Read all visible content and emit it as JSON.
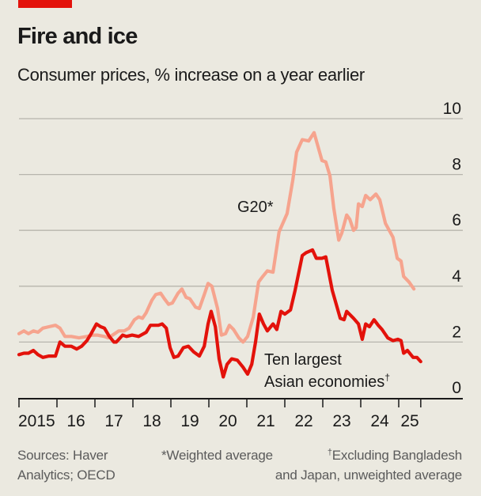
{
  "header": {
    "title": "Fire and ice",
    "subtitle": "Consumer prices, % increase on a year earlier"
  },
  "footer": {
    "sources_line1": "Sources: Haver",
    "sources_line2": "Analytics; OECD",
    "note_weighted": "*Weighted average",
    "note_excluding_mark": "†",
    "note_excluding_line1": "Excluding Bangladesh",
    "note_excluding_line2": "and Japan, unweighted average"
  },
  "colors": {
    "background": "#ebe9e0",
    "accent_red": "#e3120b",
    "g20": "#f6a48e",
    "asian": "#e3120b",
    "grid": "#b7b5ad",
    "axis": "#1a1a1a"
  },
  "chart_data": {
    "type": "line",
    "title": "Fire and ice",
    "subtitle": "Consumer prices, % increase on a year earlier",
    "xlabel": "",
    "ylabel": "",
    "xlim": [
      2015,
      2026.3
    ],
    "ylim": [
      0,
      10
    ],
    "y_ticks": [
      0,
      2,
      4,
      6,
      8,
      10
    ],
    "y_tick_labels": [
      "0",
      "2",
      "4",
      "6",
      "8",
      "10"
    ],
    "y_axis_side": "right",
    "x_ticks": [
      2015,
      2016,
      2017,
      2018,
      2019,
      2020,
      2021,
      2022,
      2023,
      2024,
      2025,
      2025.58
    ],
    "x_tick_labels": [
      "2015",
      "16",
      "17",
      "18",
      "19",
      "20",
      "21",
      "22",
      "23",
      "24",
      "25"
    ],
    "grid": true,
    "series": [
      {
        "name": "G20*",
        "label_lines": [
          "G20*"
        ],
        "x": [
          2015.0,
          2015.13,
          2015.25,
          2015.38,
          2015.5,
          2015.63,
          2015.79,
          2015.96,
          2016.08,
          2016.21,
          2016.38,
          2016.58,
          2016.79,
          2016.94,
          2017.06,
          2017.25,
          2017.35,
          2017.52,
          2017.63,
          2017.77,
          2017.9,
          2018.04,
          2018.15,
          2018.25,
          2018.35,
          2018.5,
          2018.6,
          2018.73,
          2018.83,
          2018.94,
          2019.04,
          2019.19,
          2019.29,
          2019.4,
          2019.5,
          2019.65,
          2019.75,
          2019.88,
          2019.98,
          2020.08,
          2020.23,
          2020.33,
          2020.44,
          2020.54,
          2020.65,
          2020.79,
          2020.9,
          2021.02,
          2021.17,
          2021.31,
          2021.42,
          2021.54,
          2021.69,
          2021.85,
          2022.06,
          2022.21,
          2022.31,
          2022.46,
          2022.63,
          2022.77,
          2022.98,
          2023.08,
          2023.19,
          2023.29,
          2023.42,
          2023.5,
          2023.63,
          2023.71,
          2023.81,
          2023.88,
          2023.94,
          2024.04,
          2024.13,
          2024.25,
          2024.4,
          2024.5,
          2024.65,
          2024.85,
          2024.96,
          2025.06,
          2025.13,
          2025.27,
          2025.4
        ],
        "values": [
          2.3,
          2.4,
          2.3,
          2.4,
          2.35,
          2.5,
          2.55,
          2.6,
          2.5,
          2.2,
          2.2,
          2.15,
          2.2,
          2.25,
          2.25,
          2.2,
          2.15,
          2.3,
          2.4,
          2.4,
          2.5,
          2.8,
          2.9,
          2.85,
          3.05,
          3.5,
          3.7,
          3.75,
          3.55,
          3.35,
          3.4,
          3.75,
          3.9,
          3.6,
          3.55,
          3.25,
          3.2,
          3.7,
          4.1,
          4.0,
          3.2,
          2.25,
          2.3,
          2.6,
          2.45,
          2.15,
          2.0,
          2.2,
          2.9,
          4.15,
          4.35,
          4.55,
          4.5,
          5.95,
          6.6,
          7.8,
          8.8,
          9.25,
          9.2,
          9.5,
          8.5,
          8.45,
          7.95,
          6.8,
          5.65,
          5.9,
          6.55,
          6.4,
          6.0,
          6.1,
          6.95,
          6.85,
          7.25,
          7.1,
          7.3,
          7.1,
          6.25,
          5.75,
          5.0,
          4.9,
          4.35,
          4.15,
          3.9
        ]
      },
      {
        "name": "Ten largest Asian economies†",
        "label_lines": [
          "Ten largest",
          "Asian economies"
        ],
        "label_mark": "†",
        "x": [
          2015.0,
          2015.13,
          2015.25,
          2015.38,
          2015.5,
          2015.63,
          2015.79,
          2015.96,
          2016.08,
          2016.21,
          2016.38,
          2016.52,
          2016.65,
          2016.79,
          2016.9,
          2017.04,
          2017.15,
          2017.25,
          2017.38,
          2017.5,
          2017.56,
          2017.63,
          2017.73,
          2017.83,
          2017.98,
          2018.15,
          2018.35,
          2018.46,
          2018.67,
          2018.77,
          2018.88,
          2018.98,
          2019.08,
          2019.19,
          2019.33,
          2019.46,
          2019.6,
          2019.75,
          2019.88,
          2019.98,
          2020.06,
          2020.17,
          2020.27,
          2020.38,
          2020.48,
          2020.6,
          2020.75,
          2020.9,
          2021.02,
          2021.13,
          2021.23,
          2021.33,
          2021.44,
          2021.54,
          2021.69,
          2021.79,
          2021.9,
          2022.0,
          2022.15,
          2022.27,
          2022.46,
          2022.56,
          2022.73,
          2022.83,
          2022.98,
          2023.08,
          2023.25,
          2023.46,
          2023.56,
          2023.63,
          2023.81,
          2023.94,
          2024.04,
          2024.13,
          2024.23,
          2024.35,
          2024.46,
          2024.56,
          2024.71,
          2024.85,
          2024.98,
          2025.06,
          2025.13,
          2025.23,
          2025.38,
          2025.48,
          2025.58
        ],
        "values": [
          1.55,
          1.6,
          1.6,
          1.7,
          1.55,
          1.45,
          1.5,
          1.5,
          2.0,
          1.85,
          1.85,
          1.75,
          1.85,
          2.05,
          2.3,
          2.65,
          2.55,
          2.5,
          2.2,
          2.0,
          2.0,
          2.1,
          2.25,
          2.2,
          2.25,
          2.2,
          2.35,
          2.6,
          2.6,
          2.65,
          2.5,
          1.8,
          1.45,
          1.5,
          1.8,
          1.85,
          1.65,
          1.5,
          1.85,
          2.65,
          3.1,
          2.55,
          1.4,
          0.75,
          1.2,
          1.4,
          1.35,
          1.1,
          0.85,
          1.2,
          2.0,
          3.0,
          2.65,
          2.4,
          2.65,
          2.45,
          3.1,
          3.0,
          3.15,
          3.85,
          5.1,
          5.2,
          5.3,
          5.0,
          5.0,
          5.05,
          3.85,
          2.85,
          2.8,
          3.1,
          2.85,
          2.65,
          2.1,
          2.65,
          2.55,
          2.8,
          2.6,
          2.45,
          2.15,
          2.05,
          2.1,
          2.05,
          1.6,
          1.7,
          1.45,
          1.45,
          1.3
        ]
      }
    ]
  }
}
